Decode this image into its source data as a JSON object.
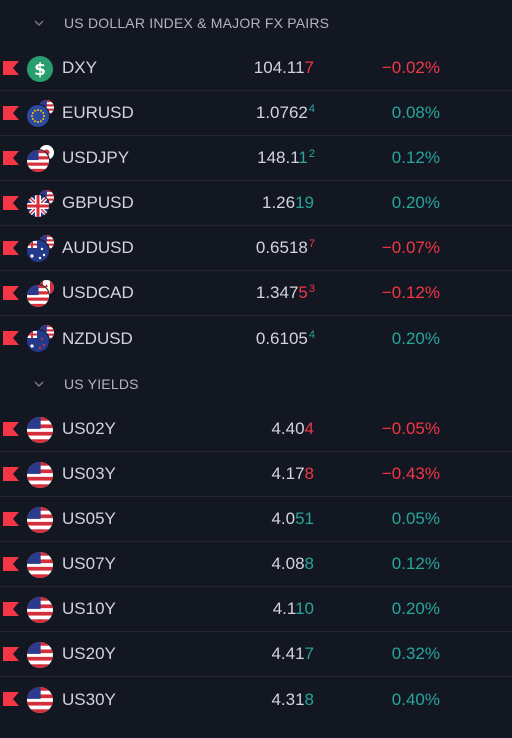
{
  "colors": {
    "positive": "#26a69a",
    "negative": "#f23645",
    "marker": "#f23645",
    "background": "#131722"
  },
  "sections": [
    {
      "title": "US DOLLAR INDEX & MAJOR FX PAIRS",
      "rows": [
        {
          "symbol": "DXY",
          "icon": "dollar-coin-icon",
          "price_main": "104.11",
          "price_hi": "7",
          "price_sup": "",
          "change": "−0.02%",
          "direction": "neg"
        },
        {
          "symbol": "EURUSD",
          "icon": "eu-us-flags-icon",
          "price_main": "1.0762",
          "price_hi": "",
          "price_sup": "4",
          "change": "0.08%",
          "direction": "pos"
        },
        {
          "symbol": "USDJPY",
          "icon": "us-jp-flags-icon",
          "price_main": "148.1",
          "price_hi": "1",
          "price_sup": "2",
          "change": "0.12%",
          "direction": "pos"
        },
        {
          "symbol": "GBPUSD",
          "icon": "gb-us-flags-icon",
          "price_main": "1.26",
          "price_hi": "19",
          "price_sup": "",
          "change": "0.20%",
          "direction": "pos"
        },
        {
          "symbol": "AUDUSD",
          "icon": "au-us-flags-icon",
          "price_main": "0.6518",
          "price_hi": "",
          "price_sup": "7",
          "change": "−0.07%",
          "direction": "neg"
        },
        {
          "symbol": "USDCAD",
          "icon": "us-ca-flags-icon",
          "price_main": "1.347",
          "price_hi": "5",
          "price_sup": "3",
          "change": "−0.12%",
          "direction": "neg"
        },
        {
          "symbol": "NZDUSD",
          "icon": "nz-us-flags-icon",
          "price_main": "0.6105",
          "price_hi": "",
          "price_sup": "4",
          "change": "0.20%",
          "direction": "pos"
        }
      ]
    },
    {
      "title": "US YIELDS",
      "rows": [
        {
          "symbol": "US02Y",
          "icon": "us-flag-icon",
          "price_main": "4.40",
          "price_hi": "4",
          "price_sup": "",
          "change": "−0.05%",
          "direction": "neg"
        },
        {
          "symbol": "US03Y",
          "icon": "us-flag-icon",
          "price_main": "4.17",
          "price_hi": "8",
          "price_sup": "",
          "change": "−0.43%",
          "direction": "neg"
        },
        {
          "symbol": "US05Y",
          "icon": "us-flag-icon",
          "price_main": "4.0",
          "price_hi": "51",
          "price_sup": "",
          "change": "0.05%",
          "direction": "pos"
        },
        {
          "symbol": "US07Y",
          "icon": "us-flag-icon",
          "price_main": "4.08",
          "price_hi": "8",
          "price_sup": "",
          "change": "0.12%",
          "direction": "pos"
        },
        {
          "symbol": "US10Y",
          "icon": "us-flag-icon",
          "price_main": "4.1",
          "price_hi": "10",
          "price_sup": "",
          "change": "0.20%",
          "direction": "pos"
        },
        {
          "symbol": "US20Y",
          "icon": "us-flag-icon",
          "price_main": "4.41",
          "price_hi": "7",
          "price_sup": "",
          "change": "0.32%",
          "direction": "pos"
        },
        {
          "symbol": "US30Y",
          "icon": "us-flag-icon",
          "price_main": "4.31",
          "price_hi": "8",
          "price_sup": "",
          "change": "0.40%",
          "direction": "pos"
        }
      ]
    }
  ]
}
